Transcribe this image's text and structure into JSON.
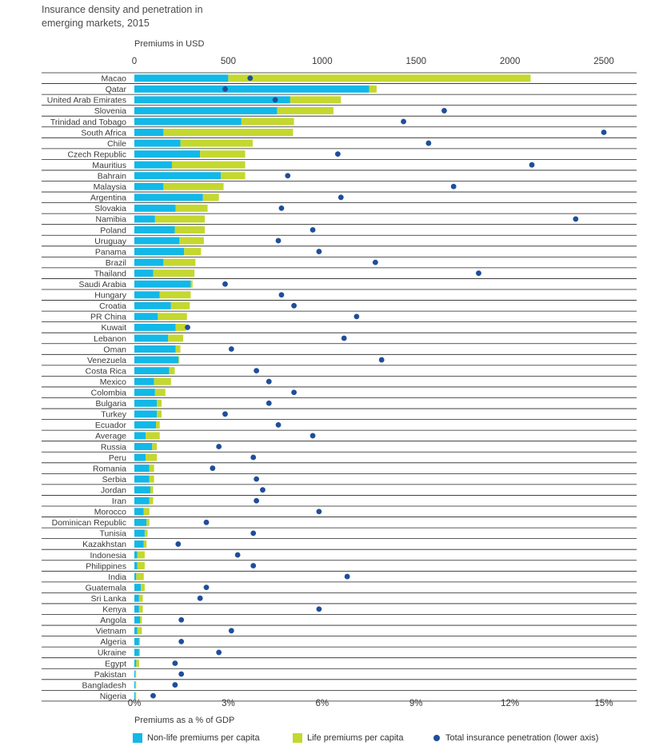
{
  "title": "Insurance density and penetration in\nemerging markets, 2015",
  "colors": {
    "nonlife": "#12b8e8",
    "life": "#c4d82f",
    "dot": "#1f4e9a",
    "rule": "#222222",
    "text": "#3a3a3a"
  },
  "chart_data": {
    "type": "bar",
    "orientation": "horizontal",
    "stacked": true,
    "top_axis": {
      "label": "Premiums in USD",
      "ticks": [
        0,
        500,
        1000,
        1500,
        2000,
        2500
      ],
      "range": [
        0,
        2700
      ]
    },
    "bottom_axis": {
      "label": "Premiums as a % of GDP",
      "ticks": [
        0,
        3,
        6,
        9,
        12,
        15
      ],
      "tick_labels": [
        "0%",
        "3%",
        "6%",
        "9%",
        "12%",
        "15%"
      ],
      "range": [
        0,
        16.2
      ]
    },
    "categories": [
      "Macao",
      "Qatar",
      "United Arab Emirates",
      "Slovenia",
      "Trinidad and Tobago",
      "South Africa",
      "Chile",
      "Czech Republic",
      "Mauritius",
      "Bahrain",
      "Malaysia",
      "Argentina",
      "Slovakia",
      "Namibia",
      "Poland",
      "Uruguay",
      "Panama",
      "Brazil",
      "Thailand",
      "Saudi Arabia",
      "Hungary",
      "Croatia",
      "PR China",
      "Kuwait",
      "Lebanon",
      "Oman",
      "Venezuela",
      "Costa Rica",
      "Mexico",
      "Colombia",
      "Bulgaria",
      "Turkey",
      "Ecuador",
      "Average",
      "Russia",
      "Peru",
      "Romania",
      "Serbia",
      "Jordan",
      "Iran",
      "Morocco",
      "Dominican Republic",
      "Tunisia",
      "Kazakhstan",
      "Indonesia",
      "Philippines",
      "India",
      "Guatemala",
      "Sri Lanka",
      "Kenya",
      "Angola",
      "Vietnam",
      "Algeria",
      "Ukraine",
      "Egypt",
      "Pakistan",
      "Bangladesh",
      "Nigeria"
    ],
    "series": [
      {
        "name": "Non-life premiums per capita",
        "axis": "top",
        "values": [
          500,
          1250,
          830,
          760,
          570,
          155,
          245,
          350,
          200,
          460,
          155,
          365,
          220,
          110,
          215,
          240,
          265,
          155,
          100,
          300,
          135,
          195,
          125,
          220,
          180,
          220,
          235,
          185,
          105,
          110,
          120,
          120,
          115,
          60,
          95,
          60,
          80,
          80,
          85,
          80,
          50,
          65,
          55,
          50,
          15,
          15,
          10,
          35,
          25,
          25,
          30,
          15,
          25,
          25,
          10,
          5,
          5,
          5
        ]
      },
      {
        "name": "Life premiums per capita",
        "axis": "top",
        "values": [
          1610,
          40,
          270,
          300,
          280,
          690,
          385,
          240,
          390,
          130,
          320,
          85,
          170,
          265,
          160,
          130,
          90,
          170,
          220,
          10,
          165,
          100,
          155,
          55,
          80,
          25,
          5,
          30,
          90,
          55,
          25,
          25,
          20,
          75,
          25,
          60,
          25,
          25,
          15,
          20,
          30,
          15,
          15,
          15,
          40,
          40,
          40,
          20,
          20,
          20,
          10,
          25,
          5,
          5,
          15,
          5,
          5,
          5
        ]
      },
      {
        "name": "Total insurance penetration (lower axis)",
        "axis": "bottom",
        "values": [
          3.7,
          2.9,
          4.5,
          9.9,
          8.6,
          15.0,
          9.4,
          6.5,
          12.7,
          4.9,
          10.2,
          6.6,
          4.7,
          14.1,
          5.7,
          4.6,
          5.9,
          7.7,
          11.0,
          2.9,
          4.7,
          5.1,
          7.1,
          1.7,
          6.7,
          3.1,
          7.9,
          3.9,
          4.3,
          5.1,
          4.3,
          2.9,
          4.6,
          5.7,
          2.7,
          3.8,
          2.5,
          3.9,
          4.1,
          3.9,
          5.9,
          2.3,
          3.8,
          1.4,
          3.3,
          3.8,
          6.8,
          2.3,
          2.1,
          5.9,
          1.5,
          3.1,
          1.5,
          2.7,
          1.3,
          1.5,
          1.3,
          0.6
        ]
      }
    ]
  },
  "legend": [
    {
      "label": "Non-life premiums per capita",
      "kind": "swatch",
      "color": "#12b8e8"
    },
    {
      "label": "Life premiums per capita",
      "kind": "swatch",
      "color": "#c4d82f"
    },
    {
      "label": "Total insurance penetration (lower axis)",
      "kind": "dot",
      "color": "#1f4e9a"
    }
  ]
}
